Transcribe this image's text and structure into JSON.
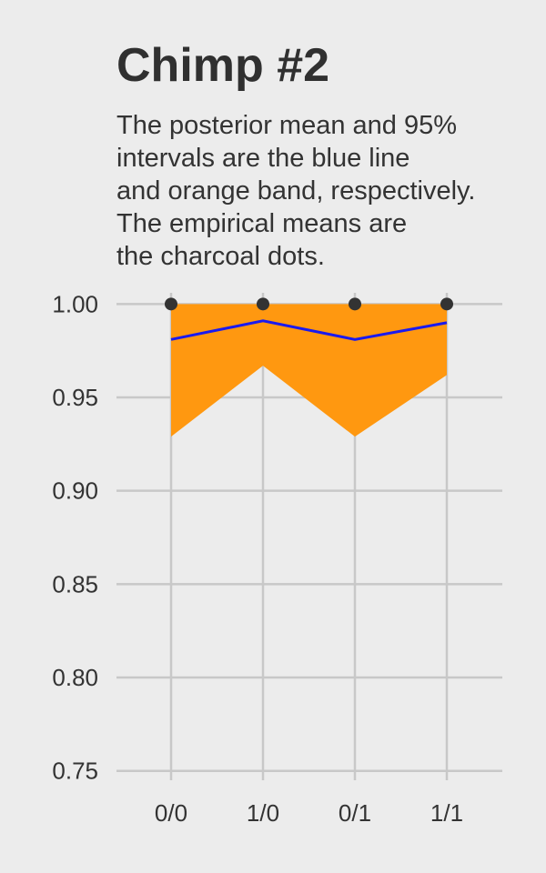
{
  "chart_data": {
    "type": "line",
    "title": "Chimp #2",
    "subtitle_lines": [
      "The posterior mean and 95%",
      "intervals are the blue line",
      "and orange band, respectively.",
      "The empirical means are",
      "the charcoal dots."
    ],
    "xlabel": "",
    "ylabel": "",
    "categories": [
      "0/0",
      "1/0",
      "0/1",
      "1/1"
    ],
    "ylim": [
      0.745,
      1.006
    ],
    "yticks": [
      1.0,
      0.95,
      0.9,
      0.85,
      0.8,
      0.75
    ],
    "ytick_labels": [
      "1.00",
      "0.95",
      "0.90",
      "0.85",
      "0.80",
      "0.75"
    ],
    "grid": true,
    "series": [
      {
        "name": "posterior mean",
        "kind": "line",
        "color": "#1a1aee",
        "values": [
          0.981,
          0.991,
          0.981,
          0.99
        ]
      },
      {
        "name": "95% interval upper",
        "kind": "band-upper",
        "color": "#ff9810",
        "values": [
          1.0,
          1.0,
          1.0,
          1.0
        ]
      },
      {
        "name": "95% interval lower",
        "kind": "band-lower",
        "color": "#ff9810",
        "values": [
          0.929,
          0.967,
          0.929,
          0.962
        ]
      },
      {
        "name": "empirical mean",
        "kind": "points",
        "color": "#333333",
        "values": [
          1.0,
          1.0,
          1.0,
          1.0
        ]
      }
    ],
    "colors": {
      "background": "#ececec",
      "grid": "#c8c8c8",
      "band": "#ff9810",
      "mean_line": "#1a1aee",
      "points": "#333333"
    }
  }
}
